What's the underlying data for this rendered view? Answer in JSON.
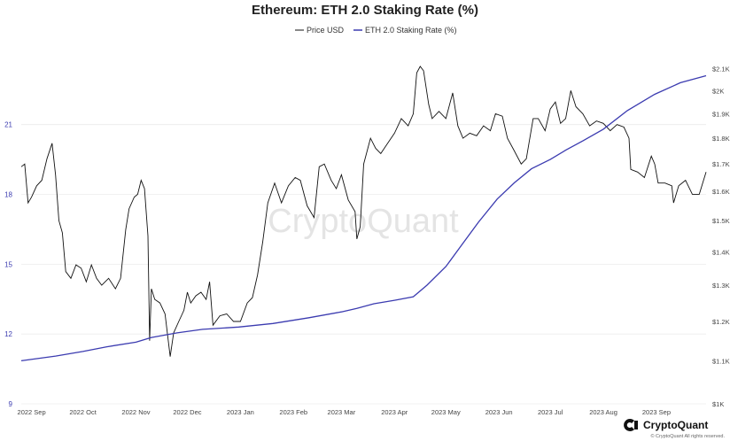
{
  "chart_data": {
    "type": "line",
    "title": "Ethereum: ETH 2.0 Staking Rate (%)",
    "legend_position": "top-center",
    "grid": true,
    "x_ticks": [
      "2022 Sep",
      "2022 Oct",
      "2022 Nov",
      "2022 Dec",
      "2023 Jan",
      "2023 Feb",
      "2023 Mar",
      "2023 Apr",
      "2023 May",
      "2023 Jun",
      "2023 Jul",
      "2023 Aug",
      "2023 Sep"
    ],
    "x_range": [
      "2022-08-26",
      "2023-09-30"
    ],
    "y_left": {
      "ticks": [
        "9",
        "12",
        "15",
        "18",
        "21"
      ],
      "range": [
        9,
        23.5
      ]
    },
    "y_right": {
      "ticks": [
        "$1K",
        "$1.1K",
        "$1.2K",
        "$1.3K",
        "$1.4K",
        "$1.5K",
        "$1.6K",
        "$1.7K",
        "$1.8K",
        "$1.9K",
        "$2K",
        "$2.1K"
      ],
      "range": [
        1000,
        2110
      ],
      "scale": "log"
    },
    "series": [
      {
        "name": "Price USD",
        "axis": "right",
        "color": "#111111",
        "points": [
          [
            "2022-08-26",
            1690
          ],
          [
            "2022-08-28",
            1700
          ],
          [
            "2022-08-30",
            1560
          ],
          [
            "2022-09-01",
            1580
          ],
          [
            "2022-09-04",
            1620
          ],
          [
            "2022-09-07",
            1640
          ],
          [
            "2022-09-10",
            1720
          ],
          [
            "2022-09-13",
            1780
          ],
          [
            "2022-09-15",
            1660
          ],
          [
            "2022-09-17",
            1500
          ],
          [
            "2022-09-19",
            1460
          ],
          [
            "2022-09-21",
            1340
          ],
          [
            "2022-09-24",
            1320
          ],
          [
            "2022-09-27",
            1360
          ],
          [
            "2022-09-30",
            1350
          ],
          [
            "2022-10-03",
            1310
          ],
          [
            "2022-10-06",
            1360
          ],
          [
            "2022-10-09",
            1320
          ],
          [
            "2022-10-12",
            1300
          ],
          [
            "2022-10-16",
            1320
          ],
          [
            "2022-10-20",
            1290
          ],
          [
            "2022-10-23",
            1320
          ],
          [
            "2022-10-26",
            1470
          ],
          [
            "2022-10-28",
            1540
          ],
          [
            "2022-10-31",
            1580
          ],
          [
            "2022-11-02",
            1590
          ],
          [
            "2022-11-04",
            1640
          ],
          [
            "2022-11-06",
            1610
          ],
          [
            "2022-11-08",
            1450
          ],
          [
            "2022-11-09",
            1150
          ],
          [
            "2022-11-10",
            1290
          ],
          [
            "2022-11-12",
            1260
          ],
          [
            "2022-11-15",
            1250
          ],
          [
            "2022-11-18",
            1220
          ],
          [
            "2022-11-21",
            1110
          ],
          [
            "2022-11-23",
            1170
          ],
          [
            "2022-11-26",
            1200
          ],
          [
            "2022-11-29",
            1230
          ],
          [
            "2022-12-01",
            1280
          ],
          [
            "2022-12-03",
            1250
          ],
          [
            "2022-12-06",
            1270
          ],
          [
            "2022-12-09",
            1280
          ],
          [
            "2022-12-12",
            1260
          ],
          [
            "2022-12-14",
            1310
          ],
          [
            "2022-12-16",
            1190
          ],
          [
            "2022-12-20",
            1215
          ],
          [
            "2022-12-24",
            1220
          ],
          [
            "2022-12-28",
            1200
          ],
          [
            "2023-01-01",
            1200
          ],
          [
            "2023-01-05",
            1250
          ],
          [
            "2023-01-08",
            1265
          ],
          [
            "2023-01-11",
            1330
          ],
          [
            "2023-01-14",
            1430
          ],
          [
            "2023-01-17",
            1560
          ],
          [
            "2023-01-21",
            1630
          ],
          [
            "2023-01-25",
            1560
          ],
          [
            "2023-01-29",
            1620
          ],
          [
            "2023-02-02",
            1650
          ],
          [
            "2023-02-05",
            1640
          ],
          [
            "2023-02-09",
            1550
          ],
          [
            "2023-02-13",
            1510
          ],
          [
            "2023-02-16",
            1690
          ],
          [
            "2023-02-19",
            1700
          ],
          [
            "2023-02-23",
            1640
          ],
          [
            "2023-02-26",
            1610
          ],
          [
            "2023-03-01",
            1660
          ],
          [
            "2023-03-05",
            1570
          ],
          [
            "2023-03-09",
            1530
          ],
          [
            "2023-03-10",
            1440
          ],
          [
            "2023-03-12",
            1480
          ],
          [
            "2023-03-14",
            1700
          ],
          [
            "2023-03-18",
            1800
          ],
          [
            "2023-03-21",
            1760
          ],
          [
            "2023-03-24",
            1740
          ],
          [
            "2023-03-28",
            1780
          ],
          [
            "2023-04-01",
            1820
          ],
          [
            "2023-04-05",
            1880
          ],
          [
            "2023-04-09",
            1850
          ],
          [
            "2023-04-12",
            1900
          ],
          [
            "2023-04-14",
            2080
          ],
          [
            "2023-04-16",
            2110
          ],
          [
            "2023-04-18",
            2090
          ],
          [
            "2023-04-21",
            1940
          ],
          [
            "2023-04-23",
            1880
          ],
          [
            "2023-04-27",
            1910
          ],
          [
            "2023-05-01",
            1880
          ],
          [
            "2023-05-05",
            1990
          ],
          [
            "2023-05-08",
            1850
          ],
          [
            "2023-05-11",
            1800
          ],
          [
            "2023-05-15",
            1820
          ],
          [
            "2023-05-19",
            1810
          ],
          [
            "2023-05-23",
            1850
          ],
          [
            "2023-05-27",
            1830
          ],
          [
            "2023-05-30",
            1900
          ],
          [
            "2023-06-03",
            1890
          ],
          [
            "2023-06-06",
            1800
          ],
          [
            "2023-06-10",
            1750
          ],
          [
            "2023-06-14",
            1700
          ],
          [
            "2023-06-17",
            1720
          ],
          [
            "2023-06-21",
            1880
          ],
          [
            "2023-06-24",
            1880
          ],
          [
            "2023-06-28",
            1830
          ],
          [
            "2023-07-01",
            1920
          ],
          [
            "2023-07-04",
            1950
          ],
          [
            "2023-07-07",
            1860
          ],
          [
            "2023-07-10",
            1880
          ],
          [
            "2023-07-13",
            2000
          ],
          [
            "2023-07-16",
            1930
          ],
          [
            "2023-07-20",
            1900
          ],
          [
            "2023-07-24",
            1850
          ],
          [
            "2023-07-28",
            1870
          ],
          [
            "2023-08-01",
            1860
          ],
          [
            "2023-08-05",
            1830
          ],
          [
            "2023-08-09",
            1855
          ],
          [
            "2023-08-13",
            1845
          ],
          [
            "2023-08-16",
            1800
          ],
          [
            "2023-08-17",
            1680
          ],
          [
            "2023-08-21",
            1670
          ],
          [
            "2023-08-25",
            1650
          ],
          [
            "2023-08-29",
            1730
          ],
          [
            "2023-08-31",
            1700
          ],
          [
            "2023-09-02",
            1630
          ],
          [
            "2023-09-06",
            1630
          ],
          [
            "2023-09-10",
            1620
          ],
          [
            "2023-09-11",
            1560
          ],
          [
            "2023-09-14",
            1620
          ],
          [
            "2023-09-18",
            1640
          ],
          [
            "2023-09-22",
            1590
          ],
          [
            "2023-09-26",
            1590
          ],
          [
            "2023-09-30",
            1670
          ]
        ]
      },
      {
        "name": "ETH 2.0 Staking Rate (%)",
        "axis": "left",
        "color": "#3b3bb0",
        "points": [
          [
            "2022-08-26",
            10.85
          ],
          [
            "2022-09-15",
            11.05
          ],
          [
            "2022-10-01",
            11.25
          ],
          [
            "2022-10-15",
            11.45
          ],
          [
            "2022-11-01",
            11.65
          ],
          [
            "2022-11-10",
            11.85
          ],
          [
            "2022-11-25",
            12.05
          ],
          [
            "2022-12-10",
            12.2
          ],
          [
            "2022-12-31",
            12.3
          ],
          [
            "2023-01-20",
            12.45
          ],
          [
            "2023-02-10",
            12.7
          ],
          [
            "2023-03-01",
            12.95
          ],
          [
            "2023-03-10",
            13.1
          ],
          [
            "2023-03-20",
            13.3
          ],
          [
            "2023-04-01",
            13.45
          ],
          [
            "2023-04-12",
            13.6
          ],
          [
            "2023-04-20",
            14.1
          ],
          [
            "2023-05-01",
            14.9
          ],
          [
            "2023-05-10",
            15.8
          ],
          [
            "2023-05-20",
            16.8
          ],
          [
            "2023-05-31",
            17.8
          ],
          [
            "2023-06-10",
            18.5
          ],
          [
            "2023-06-20",
            19.1
          ],
          [
            "2023-07-01",
            19.5
          ],
          [
            "2023-07-10",
            19.9
          ],
          [
            "2023-07-20",
            20.3
          ],
          [
            "2023-08-01",
            20.8
          ],
          [
            "2023-08-15",
            21.6
          ],
          [
            "2023-08-31",
            22.3
          ],
          [
            "2023-09-15",
            22.8
          ],
          [
            "2023-09-30",
            23.1
          ]
        ]
      }
    ]
  },
  "watermark": "CryptoQuant",
  "brand": {
    "name": "CryptoQuant",
    "copyright": "© CryptoQuant All rights reserved."
  }
}
